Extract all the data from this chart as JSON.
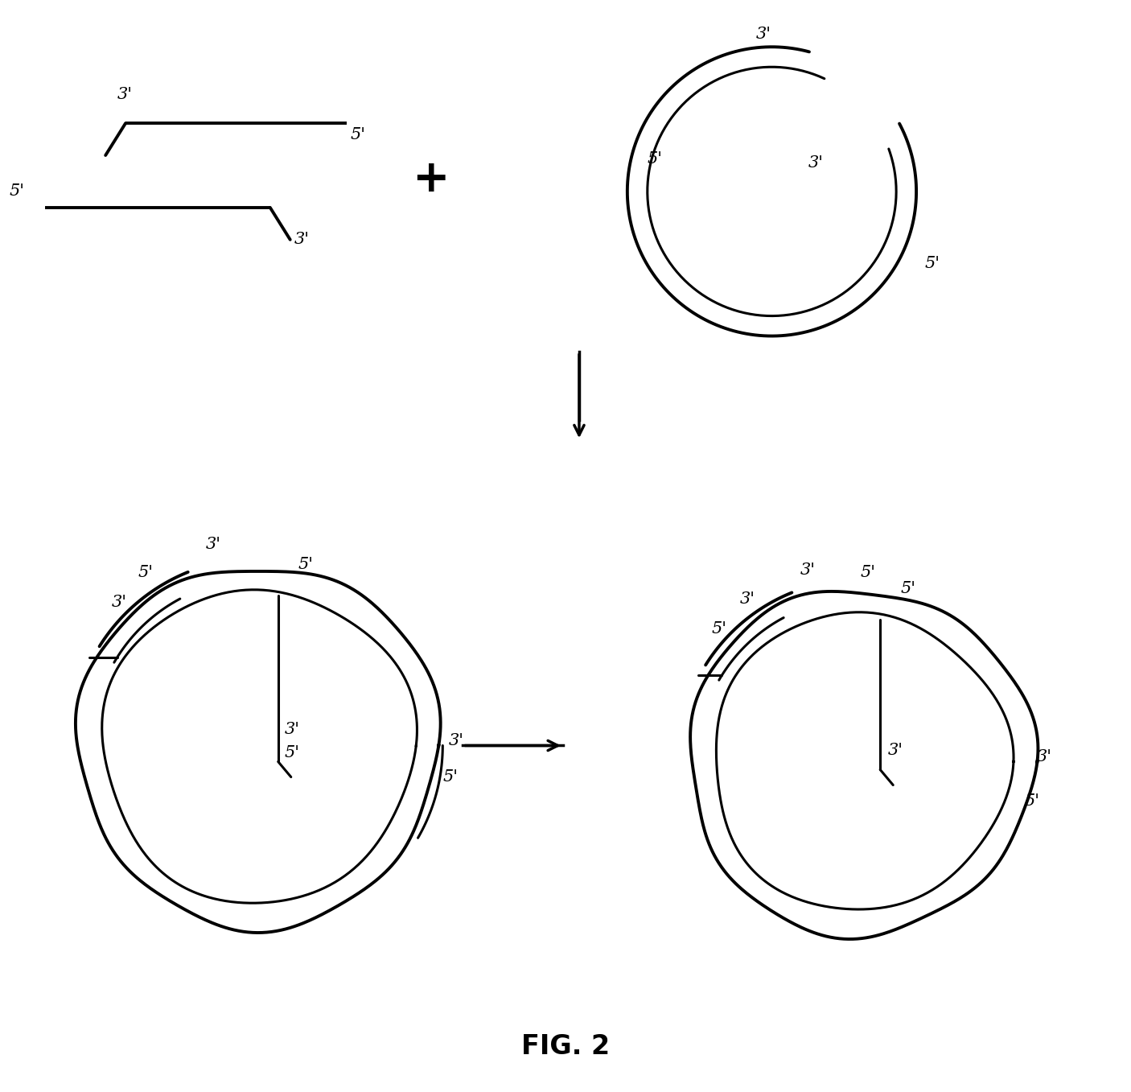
{
  "title": "FIG. 2",
  "background_color": "#ffffff",
  "line_color": "#000000",
  "font_size_labels": 15,
  "font_size_title": 24
}
